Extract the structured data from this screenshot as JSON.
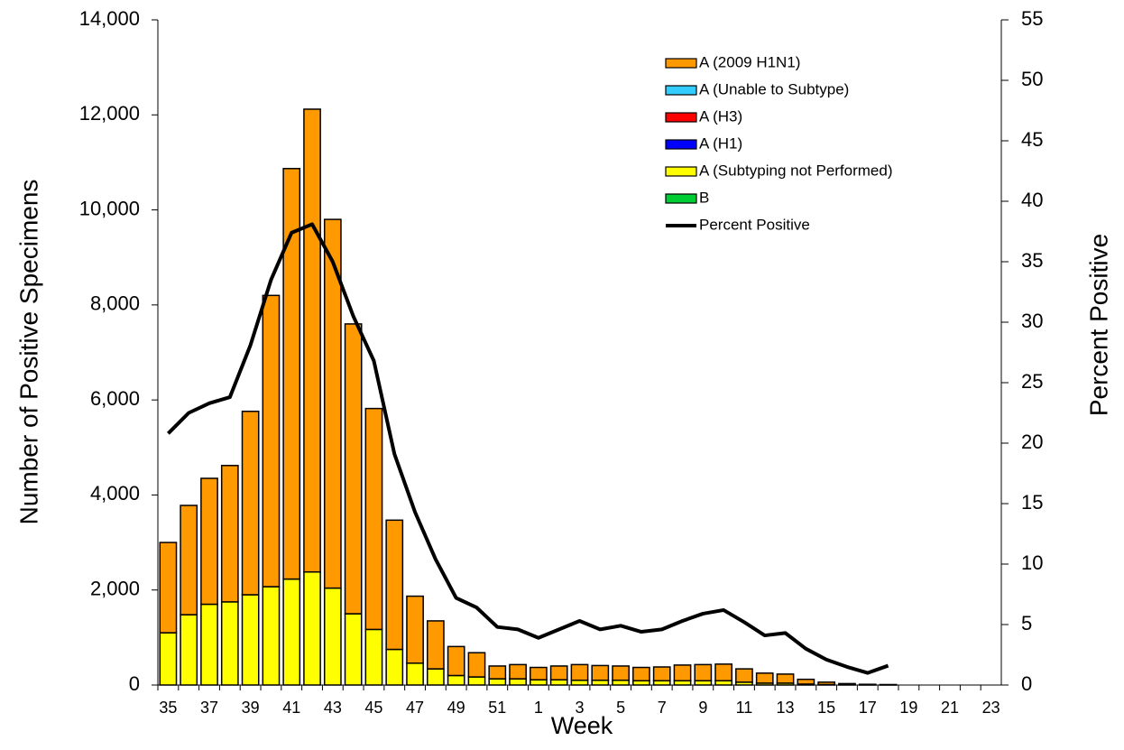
{
  "chart_data": {
    "type": "bar",
    "y_label": "Number of Positive Specimens",
    "y2_label": "Percent Positive",
    "x_label": "Week",
    "categories": [
      "35",
      null,
      "37",
      null,
      "39",
      null,
      "41",
      null,
      "43",
      null,
      "45",
      null,
      "47",
      null,
      "49",
      null,
      "51",
      null,
      "1",
      null,
      "3",
      null,
      "5",
      null,
      "7",
      null,
      "9",
      null,
      "11",
      null,
      "13",
      null,
      "15",
      null,
      "17",
      null,
      "19",
      null,
      "21",
      null,
      "23"
    ],
    "stacked": true,
    "series": [
      {
        "name": "A (2009 H1N1)",
        "color": "#ff9900",
        "values": [
          1900,
          2300,
          2650,
          2870,
          3860,
          6130,
          8640,
          9740,
          7760,
          6100,
          4650,
          2720,
          1410,
          1010,
          610,
          510,
          270,
          300,
          260,
          290,
          330,
          310,
          300,
          280,
          290,
          330,
          340,
          350,
          280,
          210,
          190,
          100,
          50,
          25,
          12,
          8,
          0,
          0,
          0,
          0,
          0
        ]
      },
      {
        "name": "A (Unable to Subtype)",
        "color": "#33ccff",
        "values": [
          0,
          0,
          0,
          0,
          0,
          0,
          0,
          0,
          0,
          0,
          0,
          0,
          0,
          0,
          0,
          0,
          0,
          0,
          0,
          0,
          0,
          0,
          0,
          0,
          0,
          0,
          0,
          0,
          0,
          0,
          0,
          0,
          0,
          0,
          0,
          0,
          0,
          0,
          0,
          0,
          0
        ]
      },
      {
        "name": "A (H3)",
        "color": "#ff0000",
        "values": [
          0,
          0,
          0,
          0,
          0,
          0,
          0,
          0,
          0,
          0,
          0,
          0,
          0,
          0,
          0,
          0,
          0,
          0,
          0,
          0,
          0,
          0,
          0,
          0,
          0,
          0,
          0,
          0,
          0,
          0,
          0,
          0,
          0,
          0,
          0,
          0,
          0,
          0,
          0,
          0,
          0
        ]
      },
      {
        "name": "A (H1)",
        "color": "#0000ff",
        "values": [
          0,
          0,
          0,
          0,
          0,
          0,
          0,
          0,
          0,
          0,
          0,
          0,
          0,
          0,
          0,
          0,
          0,
          0,
          0,
          0,
          0,
          0,
          0,
          0,
          0,
          0,
          0,
          0,
          0,
          0,
          0,
          0,
          0,
          0,
          0,
          0,
          0,
          0,
          0,
          0,
          0
        ]
      },
      {
        "name": "A (Subtyping not Performed)",
        "color": "#ffff00",
        "values": [
          1100,
          1480,
          1700,
          1750,
          1900,
          2070,
          2230,
          2380,
          2040,
          1500,
          1170,
          750,
          460,
          340,
          200,
          170,
          130,
          130,
          110,
          110,
          100,
          100,
          100,
          90,
          90,
          90,
          90,
          90,
          60,
          40,
          40,
          20,
          10,
          5,
          3,
          2,
          0,
          0,
          0,
          0,
          0
        ]
      },
      {
        "name": "B",
        "color": "#00cc33",
        "values": [
          0,
          0,
          0,
          0,
          0,
          0,
          0,
          0,
          0,
          0,
          0,
          0,
          0,
          0,
          0,
          0,
          0,
          0,
          0,
          0,
          0,
          0,
          0,
          0,
          0,
          0,
          0,
          0,
          0,
          0,
          0,
          0,
          0,
          0,
          0,
          0,
          0,
          0,
          0,
          0,
          0
        ]
      },
      {
        "name": "Percent Positive",
        "type": "line",
        "axis": "y2",
        "color": "#000000",
        "values": [
          20.8,
          22.5,
          23.3,
          23.8,
          28.1,
          33.5,
          37.4,
          38.1,
          35.0,
          30.5,
          26.8,
          19.1,
          14.3,
          10.4,
          7.2,
          6.4,
          4.8,
          4.6,
          3.9,
          4.6,
          5.3,
          4.6,
          4.9,
          4.4,
          4.6,
          5.3,
          5.9,
          6.2,
          5.2,
          4.1,
          4.3,
          3.0,
          2.1,
          1.5,
          1.0,
          1.6,
          null,
          null,
          null,
          null,
          null
        ]
      }
    ],
    "ylim": [
      0,
      14000
    ],
    "yticks": [
      0,
      {
        "value": 2000,
        "label": "2,000"
      },
      {
        "value": 4000,
        "label": "4,000"
      },
      {
        "value": 6000,
        "label": "6,000"
      },
      {
        "value": 8000,
        "label": "8,000"
      },
      {
        "value": 10000,
        "label": "10,000"
      },
      {
        "value": 12000,
        "label": "12,000"
      },
      {
        "value": 14000,
        "label": "14,000"
      }
    ],
    "y2lim": [
      0,
      55
    ],
    "y2ticks": [
      0,
      5,
      10,
      15,
      20,
      25,
      30,
      35,
      40,
      45,
      50,
      55
    ],
    "legend": "top-right"
  }
}
